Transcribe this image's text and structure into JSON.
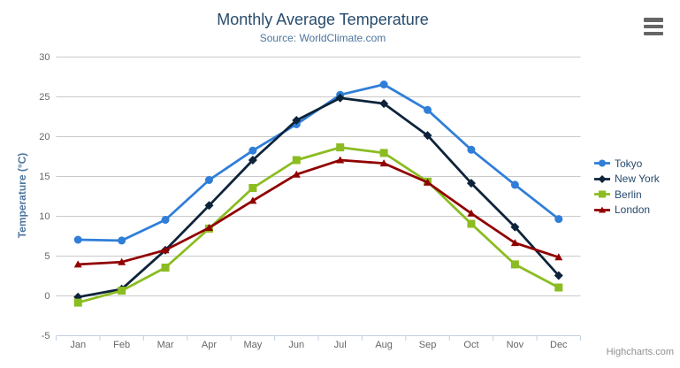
{
  "header": {
    "title": "Monthly Average Temperature",
    "subtitle": "Source: WorldClimate.com"
  },
  "icons": {
    "export_menu": "hamburger-icon"
  },
  "credits": {
    "label": "Highcharts.com"
  },
  "colors": {
    "title": "#274b6d",
    "subtitle": "#4d759e",
    "axis_labels": "#666666",
    "grid_line": "#c9c9c9",
    "axis_line": "#c0d0e0",
    "legend_text": "#274b6d",
    "credits_text": "#909090",
    "export_icon": "#666666"
  },
  "chart_data": {
    "type": "line",
    "title": "Monthly Average Temperature",
    "subtitle": "Source: WorldClimate.com",
    "xlabel": "",
    "ylabel": "Temperature (°C)",
    "ylim": [
      -5,
      30
    ],
    "yticks": [
      -5,
      0,
      5,
      10,
      15,
      20,
      25,
      30
    ],
    "grid": true,
    "legend_position": "right",
    "categories": [
      "Jan",
      "Feb",
      "Mar",
      "Apr",
      "May",
      "Jun",
      "Jul",
      "Aug",
      "Sep",
      "Oct",
      "Nov",
      "Dec"
    ],
    "series": [
      {
        "name": "Tokyo",
        "color": "#2f7ed8",
        "marker": "circle",
        "values": [
          7.0,
          6.9,
          9.5,
          14.5,
          18.2,
          21.5,
          25.2,
          26.5,
          23.3,
          18.3,
          13.9,
          9.6
        ]
      },
      {
        "name": "New York",
        "color": "#0d233a",
        "marker": "diamond",
        "values": [
          -0.2,
          0.8,
          5.7,
          11.3,
          17.0,
          22.0,
          24.8,
          24.1,
          20.1,
          14.1,
          8.6,
          2.5
        ]
      },
      {
        "name": "Berlin",
        "color": "#8bbc21",
        "marker": "square",
        "values": [
          -0.9,
          0.6,
          3.5,
          8.4,
          13.5,
          17.0,
          18.6,
          17.9,
          14.3,
          9.0,
          3.9,
          1.0
        ]
      },
      {
        "name": "London",
        "color": "#910000",
        "marker": "triangle",
        "values": [
          3.9,
          4.2,
          5.7,
          8.5,
          11.9,
          15.2,
          17.0,
          16.6,
          14.2,
          10.3,
          6.6,
          4.8
        ]
      }
    ]
  }
}
